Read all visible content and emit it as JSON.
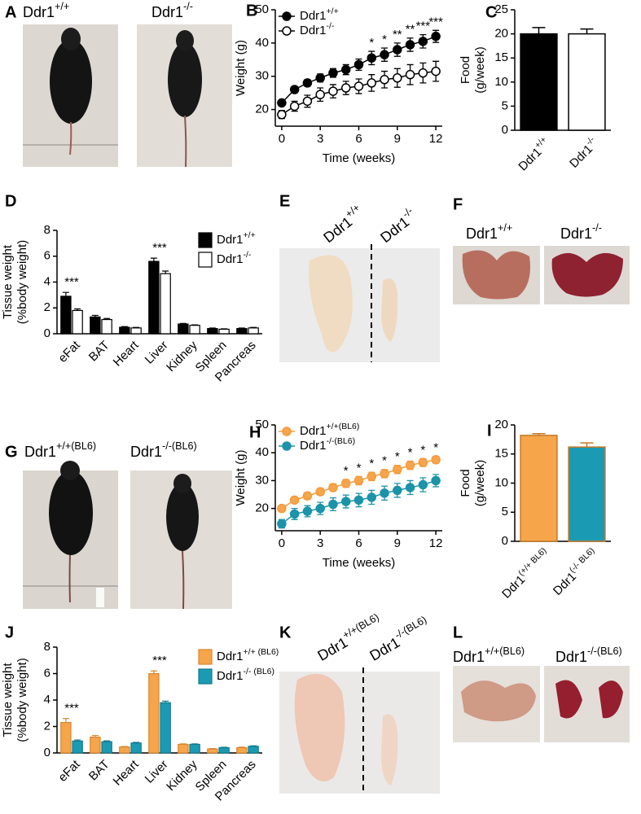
{
  "panels": [
    {
      "letter": "A",
      "labels": [
        "Ddr1+/+",
        "Ddr1-/-"
      ]
    },
    {
      "letter": "B"
    },
    {
      "letter": "C"
    },
    {
      "letter": "D"
    },
    {
      "letter": "E",
      "labels": [
        "Ddr1+/+",
        "Ddr1-/-"
      ]
    },
    {
      "letter": "F",
      "labels": [
        "Ddr1+/+",
        "Ddr1-/-"
      ]
    },
    {
      "letter": "G",
      "labels": [
        "Ddr1+/+(BL6)",
        "Ddr1-/-(BL6)"
      ]
    },
    {
      "letter": "H"
    },
    {
      "letter": "I"
    },
    {
      "letter": "J"
    },
    {
      "letter": "K",
      "labels": [
        "Ddr1+/+(BL6)",
        "Ddr1-/-(BL6)"
      ]
    },
    {
      "letter": "L",
      "labels": [
        "Ddr1+/+(BL6)",
        "Ddr1-/-(BL6)"
      ]
    }
  ],
  "chart_data": [
    {
      "type": "line",
      "xlabel": "Time (weeks)",
      "ylabel": "Weight (g)",
      "x": [
        0,
        1,
        2,
        3,
        4,
        5,
        6,
        7,
        8,
        9,
        10,
        11,
        12
      ],
      "xlim": [
        -0.5,
        12.5
      ],
      "xticks": [
        0,
        3,
        6,
        9,
        12
      ],
      "ylim": [
        15,
        50
      ],
      "yticks": [
        20,
        30,
        40,
        50
      ],
      "legend": "upper left",
      "series": [
        {
          "name": "Ddr1+/+",
          "color": "#000000",
          "fill": "#000000",
          "values": [
            22,
            26,
            28,
            29.5,
            31,
            32,
            33.5,
            35.5,
            36.5,
            38,
            39.5,
            40.5,
            42
          ],
          "errors": [
            0.8,
            1,
            1,
            1.2,
            1.3,
            1.5,
            1.7,
            2,
            2,
            2,
            2,
            2,
            1.8
          ]
        },
        {
          "name": "Ddr1-/-",
          "color": "#000000",
          "fill": "#ffffff",
          "values": [
            18.5,
            21,
            22.5,
            24.5,
            25.5,
            26.5,
            27,
            28,
            29,
            29.5,
            30.5,
            31,
            31.5
          ],
          "errors": [
            1.2,
            1.5,
            1.8,
            2,
            2,
            2,
            2.2,
            2.5,
            2.5,
            2.8,
            3,
            3,
            3
          ]
        }
      ],
      "annotations": [
        {
          "x": 7,
          "text": "*"
        },
        {
          "x": 8,
          "text": "*"
        },
        {
          "x": 9,
          "text": "**"
        },
        {
          "x": 10,
          "text": "**"
        },
        {
          "x": 11,
          "text": "***"
        },
        {
          "x": 12,
          "text": "***"
        }
      ]
    },
    {
      "type": "bar",
      "ylabel": [
        "Food",
        "(g/week)"
      ],
      "categories": [
        "Ddr1+/+",
        "Ddr1-/-"
      ],
      "values": [
        20,
        20
      ],
      "errors": [
        1.3,
        1
      ],
      "colors": [
        "#000000",
        "#ffffff"
      ],
      "edgecolor": "#000000",
      "ylim": [
        0,
        25
      ],
      "yticks": [
        0,
        5,
        10,
        15,
        20,
        25
      ]
    },
    {
      "type": "grouped_bar",
      "ylabel": [
        "Tissue weight",
        "(%body weight)"
      ],
      "categories": [
        "eFat",
        "BAT",
        "Heart",
        "Liver",
        "Kidney",
        "Spleen",
        "Pancreas"
      ],
      "ylim": [
        0,
        8
      ],
      "yticks": [
        0,
        2,
        4,
        6,
        8
      ],
      "legend": "upper right",
      "series": [
        {
          "name": "Ddr1+/+",
          "color": "#000000",
          "edgecolor": "#000000",
          "values": [
            2.9,
            1.3,
            0.5,
            5.6,
            0.75,
            0.4,
            0.4
          ],
          "errors": [
            0.3,
            0.12,
            0.05,
            0.25,
            0.05,
            0.04,
            0.04
          ]
        },
        {
          "name": "Ddr1-/-",
          "color": "#ffffff",
          "edgecolor": "#000000",
          "values": [
            1.8,
            1.1,
            0.45,
            4.65,
            0.65,
            0.35,
            0.45
          ],
          "errors": [
            0.12,
            0.08,
            0.04,
            0.2,
            0.04,
            0.03,
            0.04
          ]
        }
      ],
      "annotations": [
        {
          "x": 0,
          "text": "***"
        },
        {
          "x": 3,
          "text": "***"
        }
      ]
    },
    {
      "type": "line",
      "xlabel": "Time (weeks)",
      "ylabel": "Weight (g)",
      "x": [
        0,
        1,
        2,
        3,
        4,
        5,
        6,
        7,
        8,
        9,
        10,
        11,
        12
      ],
      "xlim": [
        -0.5,
        12.5
      ],
      "xticks": [
        0,
        3,
        6,
        9,
        12
      ],
      "ylim": [
        12,
        50
      ],
      "yticks": [
        20,
        30,
        40,
        50
      ],
      "legend": "upper left",
      "series": [
        {
          "name": "Ddr1+/+(BL6)",
          "color": "#f39a3c",
          "fill": "#f7a54a",
          "values": [
            20,
            23,
            24.5,
            26,
            27.5,
            29,
            30,
            31.5,
            32.5,
            34,
            35.5,
            36.5,
            37.5
          ],
          "errors": [
            1,
            1,
            1.2,
            1.2,
            1.3,
            1.4,
            1.5,
            1.5,
            1.5,
            1.5,
            1.5,
            1.4,
            1.2
          ]
        },
        {
          "name": "Ddr1-/-(BL6)",
          "color": "#1b93a9",
          "fill": "#1b93a9",
          "values": [
            14.5,
            18,
            19,
            20,
            21.5,
            22.5,
            23,
            24,
            25.5,
            26.5,
            27.5,
            28.5,
            30
          ],
          "errors": [
            1.5,
            2,
            2,
            2.2,
            2.3,
            2.3,
            2.4,
            2.5,
            2.5,
            2.5,
            2.5,
            2.5,
            2.2
          ]
        }
      ],
      "annotations": [
        {
          "x": 5,
          "text": "*"
        },
        {
          "x": 6,
          "text": "*"
        },
        {
          "x": 7,
          "text": "*"
        },
        {
          "x": 8,
          "text": "*"
        },
        {
          "x": 9,
          "text": "*"
        },
        {
          "x": 10,
          "text": "*"
        },
        {
          "x": 11,
          "text": "*"
        },
        {
          "x": 12,
          "text": "*"
        }
      ]
    },
    {
      "type": "bar",
      "ylabel": [
        "Food",
        "(g/week)"
      ],
      "categories": [
        "Ddr1(+/+ BL6)",
        "Ddr1(-/- BL6)"
      ],
      "values": [
        18.2,
        16.2
      ],
      "errors": [
        0.3,
        0.7
      ],
      "colors": [
        "#f7a54a",
        "#1b9bb3"
      ],
      "edgecolor": "#c47a28",
      "ylim": [
        0,
        20
      ],
      "yticks": [
        0,
        5,
        10,
        15,
        20
      ]
    },
    {
      "type": "grouped_bar",
      "ylabel": [
        "Tissue weight",
        "(%body weight)"
      ],
      "categories": [
        "eFat",
        "BAT",
        "Heart",
        "Liver",
        "Kidney",
        "Spleen",
        "Pancreas"
      ],
      "ylim": [
        0,
        8
      ],
      "yticks": [
        0,
        2,
        4,
        6,
        8
      ],
      "legend": "upper right",
      "series": [
        {
          "name": "Ddr1+/+ (BL6)",
          "color": "#f7a54a",
          "edgecolor": "#d9862e",
          "values": [
            2.3,
            1.2,
            0.45,
            6.0,
            0.65,
            0.3,
            0.4
          ],
          "errors": [
            0.3,
            0.12,
            0.04,
            0.2,
            0.04,
            0.03,
            0.04
          ]
        },
        {
          "name": "Ddr1-/- (BL6)",
          "color": "#1b9bb3",
          "edgecolor": "#137a8c",
          "values": [
            0.9,
            0.85,
            0.75,
            3.8,
            0.65,
            0.4,
            0.5
          ],
          "errors": [
            0.08,
            0.07,
            0.05,
            0.12,
            0.04,
            0.03,
            0.04
          ]
        }
      ],
      "annotations": [
        {
          "x": 0,
          "text": "***"
        },
        {
          "x": 3,
          "text": "***"
        }
      ]
    }
  ]
}
